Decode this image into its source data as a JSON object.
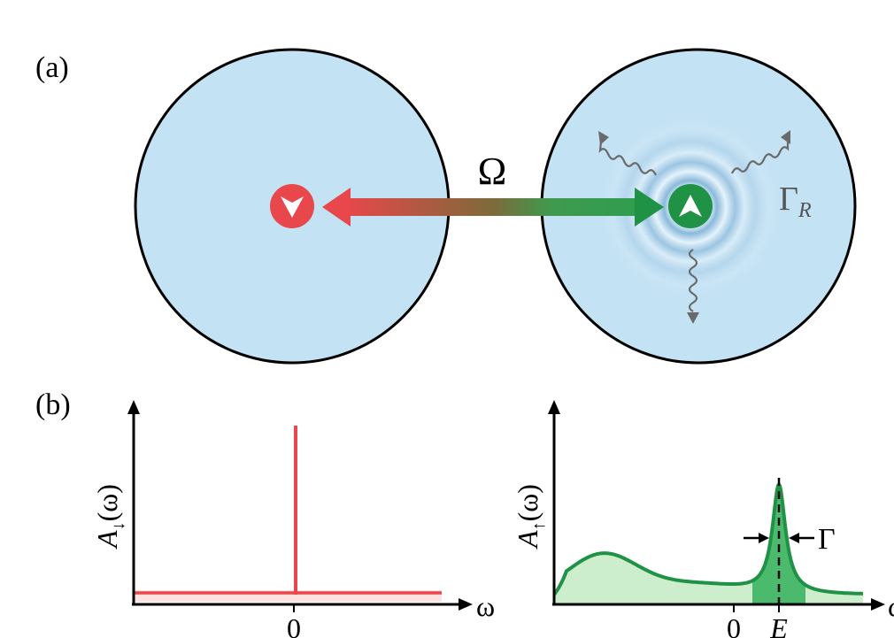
{
  "panel_a": {
    "label": "(a)",
    "coupling_label": "Ω",
    "decay_label_main": "Γ",
    "decay_label_sub": "R",
    "left_spin": "down",
    "right_spin": "up"
  },
  "panel_b": {
    "label": "(b)",
    "left_plot": {
      "ylabel_main": "A",
      "ylabel_sub": "↓",
      "ylabel_tail": "(ω)",
      "xlabel": "ω",
      "tick_zero": "0"
    },
    "right_plot": {
      "ylabel_main": "A",
      "ylabel_sub": "↑",
      "ylabel_tail": "(ω)",
      "xlabel": "ω",
      "tick_zero": "0",
      "tick_peak": "E",
      "width_label": "Γ"
    }
  },
  "colors": {
    "bath": "#c3e2f4",
    "red": "#e8474b",
    "green": "#1f9246",
    "green_fill": "#cdeecc",
    "wiggle": "#6a6a6a"
  }
}
